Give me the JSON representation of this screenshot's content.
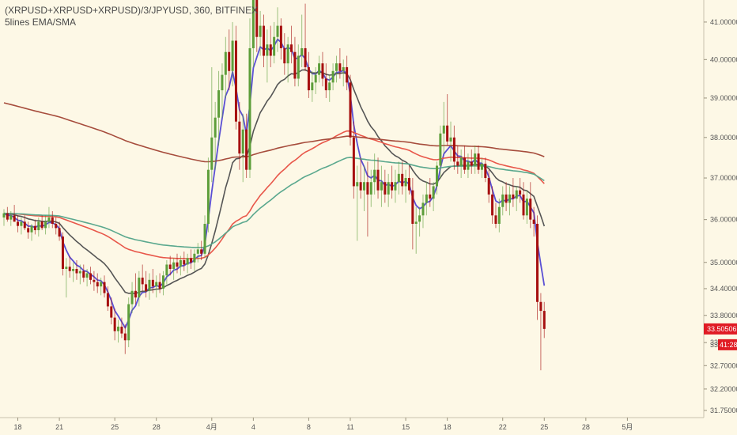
{
  "legend": {
    "symbol_line": "(XRPUSD+XRPUSD+XRPUSD)/3/JPYUSD, 360, BITFINEX",
    "indicator_line": "5lines EMA/SMA"
  },
  "colors": {
    "background": "#fdf8e6",
    "up_candle": "#5d9e3a",
    "down_candle": "#a60f0f",
    "ema_fast": "#5a4fd4",
    "ema_slow": "#555555",
    "ma_red": "#e8574a",
    "ma_teal": "#5aa88e",
    "ma_brown": "#a64c3c",
    "price_tag": "#e01b24"
  },
  "chart_data": {
    "type": "candlestick",
    "y_axis": {
      "scale": "log",
      "ylim": [
        31.6,
        42.0
      ],
      "ticks": [
        "41.00000",
        "40.00000",
        "39.00000",
        "38.00000",
        "37.00000",
        "36.00000",
        "35.00000",
        "34.40000",
        "33.80000",
        "33.20000",
        "32.70000",
        "32.20000",
        "31.75000"
      ],
      "tick_values": [
        41.0,
        40.0,
        39.0,
        38.0,
        37.0,
        36.0,
        35.0,
        34.4,
        33.8,
        33.2,
        32.7,
        32.2,
        31.75
      ]
    },
    "x_axis": {
      "tick_labels": [
        "18",
        "21",
        "25",
        "28",
        "4月",
        "4",
        "8",
        "11",
        "15",
        "18",
        "22",
        "25",
        "28",
        "5月"
      ],
      "tick_index": [
        4,
        16,
        32,
        44,
        60,
        72,
        88,
        100,
        116,
        128,
        144,
        156,
        168,
        180
      ]
    },
    "last_price_label": "33.50506",
    "countdown_label": "41:28",
    "countdown_prefix": "33",
    "candles": [
      {
        "o": 36.05,
        "h": 36.25,
        "l": 35.85,
        "c": 36.15
      },
      {
        "o": 36.15,
        "h": 36.3,
        "l": 35.95,
        "c": 36.0
      },
      {
        "o": 36.0,
        "h": 36.2,
        "l": 35.85,
        "c": 36.1
      },
      {
        "o": 36.1,
        "h": 36.35,
        "l": 35.95,
        "c": 35.95
      },
      {
        "o": 35.95,
        "h": 36.1,
        "l": 35.7,
        "c": 35.85
      },
      {
        "o": 35.85,
        "h": 36.05,
        "l": 35.65,
        "c": 35.95
      },
      {
        "o": 35.95,
        "h": 36.1,
        "l": 35.75,
        "c": 35.8
      },
      {
        "o": 35.8,
        "h": 35.95,
        "l": 35.55,
        "c": 35.7
      },
      {
        "o": 35.7,
        "h": 35.9,
        "l": 35.5,
        "c": 35.85
      },
      {
        "o": 35.85,
        "h": 36.0,
        "l": 35.65,
        "c": 35.75
      },
      {
        "o": 35.75,
        "h": 36.05,
        "l": 35.6,
        "c": 35.95
      },
      {
        "o": 35.95,
        "h": 36.1,
        "l": 35.75,
        "c": 35.8
      },
      {
        "o": 35.8,
        "h": 36.1,
        "l": 35.65,
        "c": 35.95
      },
      {
        "o": 35.95,
        "h": 36.3,
        "l": 35.8,
        "c": 36.05
      },
      {
        "o": 36.05,
        "h": 36.2,
        "l": 35.8,
        "c": 35.9
      },
      {
        "o": 35.9,
        "h": 36.05,
        "l": 35.65,
        "c": 35.8
      },
      {
        "o": 35.8,
        "h": 35.95,
        "l": 35.5,
        "c": 35.6
      },
      {
        "o": 35.6,
        "h": 35.7,
        "l": 34.7,
        "c": 34.85
      },
      {
        "o": 34.85,
        "h": 35.1,
        "l": 34.2,
        "c": 34.9
      },
      {
        "o": 34.9,
        "h": 35.15,
        "l": 34.65,
        "c": 34.8
      },
      {
        "o": 34.8,
        "h": 35.0,
        "l": 34.55,
        "c": 34.85
      },
      {
        "o": 34.85,
        "h": 35.05,
        "l": 34.6,
        "c": 34.75
      },
      {
        "o": 34.75,
        "h": 34.95,
        "l": 34.5,
        "c": 34.8
      },
      {
        "o": 34.8,
        "h": 34.95,
        "l": 34.55,
        "c": 34.65
      },
      {
        "o": 34.65,
        "h": 34.85,
        "l": 34.45,
        "c": 34.75
      },
      {
        "o": 34.75,
        "h": 34.9,
        "l": 34.5,
        "c": 34.6
      },
      {
        "o": 34.6,
        "h": 34.8,
        "l": 34.35,
        "c": 34.55
      },
      {
        "o": 34.55,
        "h": 34.75,
        "l": 34.3,
        "c": 34.45
      },
      {
        "o": 34.45,
        "h": 34.65,
        "l": 34.25,
        "c": 34.55
      },
      {
        "o": 34.55,
        "h": 34.7,
        "l": 34.2,
        "c": 34.3
      },
      {
        "o": 34.3,
        "h": 34.45,
        "l": 33.9,
        "c": 34.0
      },
      {
        "o": 34.0,
        "h": 34.2,
        "l": 33.6,
        "c": 33.75
      },
      {
        "o": 33.75,
        "h": 33.95,
        "l": 33.25,
        "c": 33.45
      },
      {
        "o": 33.45,
        "h": 33.7,
        "l": 33.2,
        "c": 33.55
      },
      {
        "o": 33.55,
        "h": 33.75,
        "l": 33.3,
        "c": 33.4
      },
      {
        "o": 33.4,
        "h": 33.6,
        "l": 32.95,
        "c": 33.25
      },
      {
        "o": 33.25,
        "h": 34.2,
        "l": 33.1,
        "c": 34.05
      },
      {
        "o": 34.05,
        "h": 34.55,
        "l": 33.85,
        "c": 34.35
      },
      {
        "o": 34.35,
        "h": 34.75,
        "l": 34.05,
        "c": 34.2
      },
      {
        "o": 34.2,
        "h": 34.8,
        "l": 34.0,
        "c": 34.65
      },
      {
        "o": 34.65,
        "h": 34.95,
        "l": 34.35,
        "c": 34.5
      },
      {
        "o": 34.5,
        "h": 34.8,
        "l": 34.2,
        "c": 34.35
      },
      {
        "o": 34.35,
        "h": 34.75,
        "l": 34.15,
        "c": 34.6
      },
      {
        "o": 34.6,
        "h": 34.85,
        "l": 34.3,
        "c": 34.45
      },
      {
        "o": 34.45,
        "h": 34.7,
        "l": 34.2,
        "c": 34.55
      },
      {
        "o": 34.55,
        "h": 34.75,
        "l": 34.3,
        "c": 34.4
      },
      {
        "o": 34.4,
        "h": 34.8,
        "l": 34.25,
        "c": 34.7
      },
      {
        "o": 34.7,
        "h": 35.05,
        "l": 34.5,
        "c": 34.95
      },
      {
        "o": 34.95,
        "h": 35.15,
        "l": 34.7,
        "c": 34.85
      },
      {
        "o": 34.85,
        "h": 35.1,
        "l": 34.6,
        "c": 35.0
      },
      {
        "o": 35.0,
        "h": 35.2,
        "l": 34.75,
        "c": 34.9
      },
      {
        "o": 34.9,
        "h": 35.15,
        "l": 34.7,
        "c": 35.05
      },
      {
        "o": 35.05,
        "h": 35.25,
        "l": 34.8,
        "c": 34.95
      },
      {
        "o": 34.95,
        "h": 35.2,
        "l": 34.75,
        "c": 35.1
      },
      {
        "o": 35.1,
        "h": 35.3,
        "l": 34.85,
        "c": 35.0
      },
      {
        "o": 35.0,
        "h": 35.3,
        "l": 34.8,
        "c": 35.2
      },
      {
        "o": 35.2,
        "h": 35.45,
        "l": 35.0,
        "c": 35.3
      },
      {
        "o": 35.3,
        "h": 35.5,
        "l": 35.05,
        "c": 35.2
      },
      {
        "o": 35.2,
        "h": 36.1,
        "l": 35.1,
        "c": 35.9
      },
      {
        "o": 35.9,
        "h": 37.5,
        "l": 35.7,
        "c": 37.2
      },
      {
        "o": 37.2,
        "h": 39.8,
        "l": 36.9,
        "c": 38.0
      },
      {
        "o": 38.0,
        "h": 38.9,
        "l": 37.2,
        "c": 38.5
      },
      {
        "o": 38.5,
        "h": 39.7,
        "l": 37.8,
        "c": 39.2
      },
      {
        "o": 39.2,
        "h": 39.9,
        "l": 38.5,
        "c": 39.6
      },
      {
        "o": 39.6,
        "h": 40.6,
        "l": 39.0,
        "c": 40.2
      },
      {
        "o": 40.2,
        "h": 40.8,
        "l": 39.2,
        "c": 39.7
      },
      {
        "o": 39.7,
        "h": 41.0,
        "l": 39.3,
        "c": 40.5
      },
      {
        "o": 40.5,
        "h": 40.9,
        "l": 38.2,
        "c": 38.4
      },
      {
        "o": 38.4,
        "h": 38.9,
        "l": 37.2,
        "c": 37.6
      },
      {
        "o": 37.6,
        "h": 38.6,
        "l": 36.9,
        "c": 38.2
      },
      {
        "o": 38.2,
        "h": 38.6,
        "l": 37.0,
        "c": 37.2
      },
      {
        "o": 37.2,
        "h": 41.1,
        "l": 37.0,
        "c": 40.3
      },
      {
        "o": 40.3,
        "h": 42.0,
        "l": 39.8,
        "c": 41.7
      },
      {
        "o": 41.7,
        "h": 41.9,
        "l": 40.2,
        "c": 40.6
      },
      {
        "o": 40.6,
        "h": 41.3,
        "l": 40.1,
        "c": 40.9
      },
      {
        "o": 40.9,
        "h": 41.2,
        "l": 39.8,
        "c": 40.1
      },
      {
        "o": 40.1,
        "h": 40.8,
        "l": 39.4,
        "c": 40.4
      },
      {
        "o": 40.4,
        "h": 40.9,
        "l": 39.8,
        "c": 40.1
      },
      {
        "o": 40.1,
        "h": 41.0,
        "l": 39.9,
        "c": 40.6
      },
      {
        "o": 40.6,
        "h": 41.4,
        "l": 40.2,
        "c": 40.9
      },
      {
        "o": 40.9,
        "h": 41.1,
        "l": 40.0,
        "c": 40.3
      },
      {
        "o": 40.3,
        "h": 40.7,
        "l": 39.6,
        "c": 39.9
      },
      {
        "o": 39.9,
        "h": 40.6,
        "l": 39.4,
        "c": 40.4
      },
      {
        "o": 40.4,
        "h": 40.9,
        "l": 39.9,
        "c": 40.2
      },
      {
        "o": 40.2,
        "h": 40.6,
        "l": 39.3,
        "c": 39.5
      },
      {
        "o": 39.5,
        "h": 40.4,
        "l": 39.3,
        "c": 40.1
      },
      {
        "o": 40.1,
        "h": 41.2,
        "l": 39.8,
        "c": 40.3
      },
      {
        "o": 40.3,
        "h": 41.5,
        "l": 39.7,
        "c": 39.8
      },
      {
        "o": 39.8,
        "h": 40.2,
        "l": 39.0,
        "c": 39.2
      },
      {
        "o": 39.2,
        "h": 39.7,
        "l": 38.9,
        "c": 39.4
      },
      {
        "o": 39.4,
        "h": 39.8,
        "l": 39.1,
        "c": 39.6
      },
      {
        "o": 39.6,
        "h": 40.1,
        "l": 39.4,
        "c": 39.9
      },
      {
        "o": 39.9,
        "h": 40.2,
        "l": 39.3,
        "c": 39.5
      },
      {
        "o": 39.5,
        "h": 39.9,
        "l": 39.0,
        "c": 39.2
      },
      {
        "o": 39.2,
        "h": 39.6,
        "l": 38.9,
        "c": 39.4
      },
      {
        "o": 39.4,
        "h": 39.9,
        "l": 39.2,
        "c": 39.7
      },
      {
        "o": 39.7,
        "h": 40.1,
        "l": 39.4,
        "c": 39.9
      },
      {
        "o": 39.9,
        "h": 40.3,
        "l": 39.5,
        "c": 39.7
      },
      {
        "o": 39.7,
        "h": 40.0,
        "l": 39.3,
        "c": 39.8
      },
      {
        "o": 39.8,
        "h": 40.1,
        "l": 39.2,
        "c": 39.4
      },
      {
        "o": 39.4,
        "h": 39.6,
        "l": 37.8,
        "c": 38.0
      },
      {
        "o": 38.0,
        "h": 38.4,
        "l": 36.5,
        "c": 36.8
      },
      {
        "o": 36.8,
        "h": 37.3,
        "l": 35.5,
        "c": 36.9
      },
      {
        "o": 36.9,
        "h": 37.5,
        "l": 36.5,
        "c": 36.7
      },
      {
        "o": 36.7,
        "h": 37.3,
        "l": 36.2,
        "c": 36.9
      },
      {
        "o": 36.9,
        "h": 37.4,
        "l": 35.6,
        "c": 36.6
      },
      {
        "o": 36.6,
        "h": 37.2,
        "l": 36.3,
        "c": 36.9
      },
      {
        "o": 36.9,
        "h": 37.6,
        "l": 36.6,
        "c": 37.2
      },
      {
        "o": 37.2,
        "h": 37.5,
        "l": 36.5,
        "c": 36.7
      },
      {
        "o": 36.7,
        "h": 37.3,
        "l": 36.3,
        "c": 36.9
      },
      {
        "o": 36.9,
        "h": 37.2,
        "l": 36.4,
        "c": 36.6
      },
      {
        "o": 36.6,
        "h": 37.1,
        "l": 36.3,
        "c": 36.9
      },
      {
        "o": 36.9,
        "h": 37.3,
        "l": 36.5,
        "c": 36.7
      },
      {
        "o": 36.7,
        "h": 37.2,
        "l": 36.4,
        "c": 36.9
      },
      {
        "o": 36.9,
        "h": 37.4,
        "l": 36.6,
        "c": 37.1
      },
      {
        "o": 37.1,
        "h": 37.4,
        "l": 36.6,
        "c": 36.8
      },
      {
        "o": 36.8,
        "h": 37.2,
        "l": 36.4,
        "c": 37.0
      },
      {
        "o": 37.0,
        "h": 37.3,
        "l": 36.6,
        "c": 36.7
      },
      {
        "o": 36.7,
        "h": 37.0,
        "l": 35.3,
        "c": 35.9
      },
      {
        "o": 35.9,
        "h": 36.3,
        "l": 35.2,
        "c": 35.95
      },
      {
        "o": 35.95,
        "h": 36.3,
        "l": 35.6,
        "c": 36.1
      },
      {
        "o": 36.1,
        "h": 36.6,
        "l": 35.8,
        "c": 36.4
      },
      {
        "o": 36.4,
        "h": 36.9,
        "l": 36.1,
        "c": 36.6
      },
      {
        "o": 36.6,
        "h": 37.0,
        "l": 36.3,
        "c": 36.5
      },
      {
        "o": 36.5,
        "h": 36.9,
        "l": 36.2,
        "c": 36.8
      },
      {
        "o": 36.8,
        "h": 37.4,
        "l": 36.6,
        "c": 37.3
      },
      {
        "o": 37.3,
        "h": 38.3,
        "l": 37.0,
        "c": 38.1
      },
      {
        "o": 38.1,
        "h": 38.9,
        "l": 37.6,
        "c": 38.3
      },
      {
        "o": 38.3,
        "h": 39.1,
        "l": 37.8,
        "c": 37.9
      },
      {
        "o": 37.9,
        "h": 38.4,
        "l": 37.4,
        "c": 38.0
      },
      {
        "o": 38.0,
        "h": 38.3,
        "l": 37.2,
        "c": 37.4
      },
      {
        "o": 37.4,
        "h": 37.8,
        "l": 37.1,
        "c": 37.3
      },
      {
        "o": 37.3,
        "h": 37.7,
        "l": 37.0,
        "c": 37.5
      },
      {
        "o": 37.5,
        "h": 37.8,
        "l": 37.1,
        "c": 37.2
      },
      {
        "o": 37.2,
        "h": 37.6,
        "l": 37.0,
        "c": 37.4
      },
      {
        "o": 37.4,
        "h": 37.7,
        "l": 37.1,
        "c": 37.3
      },
      {
        "o": 37.3,
        "h": 37.8,
        "l": 37.1,
        "c": 37.6
      },
      {
        "o": 37.6,
        "h": 37.8,
        "l": 37.1,
        "c": 37.2
      },
      {
        "o": 37.2,
        "h": 37.5,
        "l": 37.0,
        "c": 37.35
      },
      {
        "o": 37.35,
        "h": 37.5,
        "l": 36.9,
        "c": 37.0
      },
      {
        "o": 37.0,
        "h": 37.2,
        "l": 36.4,
        "c": 36.6
      },
      {
        "o": 36.6,
        "h": 36.8,
        "l": 35.9,
        "c": 36.1
      },
      {
        "o": 36.1,
        "h": 36.4,
        "l": 35.8,
        "c": 35.9
      },
      {
        "o": 35.9,
        "h": 36.5,
        "l": 35.7,
        "c": 36.3
      },
      {
        "o": 36.3,
        "h": 36.8,
        "l": 36.1,
        "c": 36.6
      },
      {
        "o": 36.6,
        "h": 36.9,
        "l": 36.2,
        "c": 36.4
      },
      {
        "o": 36.4,
        "h": 36.8,
        "l": 36.1,
        "c": 36.6
      },
      {
        "o": 36.6,
        "h": 37.0,
        "l": 36.3,
        "c": 36.5
      },
      {
        "o": 36.5,
        "h": 36.8,
        "l": 36.2,
        "c": 36.7
      },
      {
        "o": 36.7,
        "h": 37.0,
        "l": 36.4,
        "c": 36.6
      },
      {
        "o": 36.6,
        "h": 36.9,
        "l": 36.0,
        "c": 36.1
      },
      {
        "o": 36.1,
        "h": 36.7,
        "l": 35.9,
        "c": 36.5
      },
      {
        "o": 36.5,
        "h": 36.9,
        "l": 35.8,
        "c": 36.0
      },
      {
        "o": 36.0,
        "h": 36.3,
        "l": 35.6,
        "c": 35.9
      },
      {
        "o": 35.9,
        "h": 36.1,
        "l": 33.7,
        "c": 34.1
      },
      {
        "o": 34.1,
        "h": 34.3,
        "l": 32.6,
        "c": 33.9
      },
      {
        "o": 33.9,
        "h": 34.1,
        "l": 33.3,
        "c": 33.5
      }
    ],
    "series": [
      {
        "role": "ema_fast",
        "color_key": "ema_fast",
        "period": 5
      },
      {
        "role": "ema_slow",
        "color_key": "ema_slow",
        "period": 20
      },
      {
        "role": "ma_red",
        "color_key": "ma_red",
        "period": 75
      },
      {
        "role": "ma_teal",
        "color_key": "ma_teal",
        "period": 120
      },
      {
        "role": "ma_brown",
        "color_key": "ma_brown",
        "period": 250,
        "seed": 38.9
      }
    ]
  }
}
